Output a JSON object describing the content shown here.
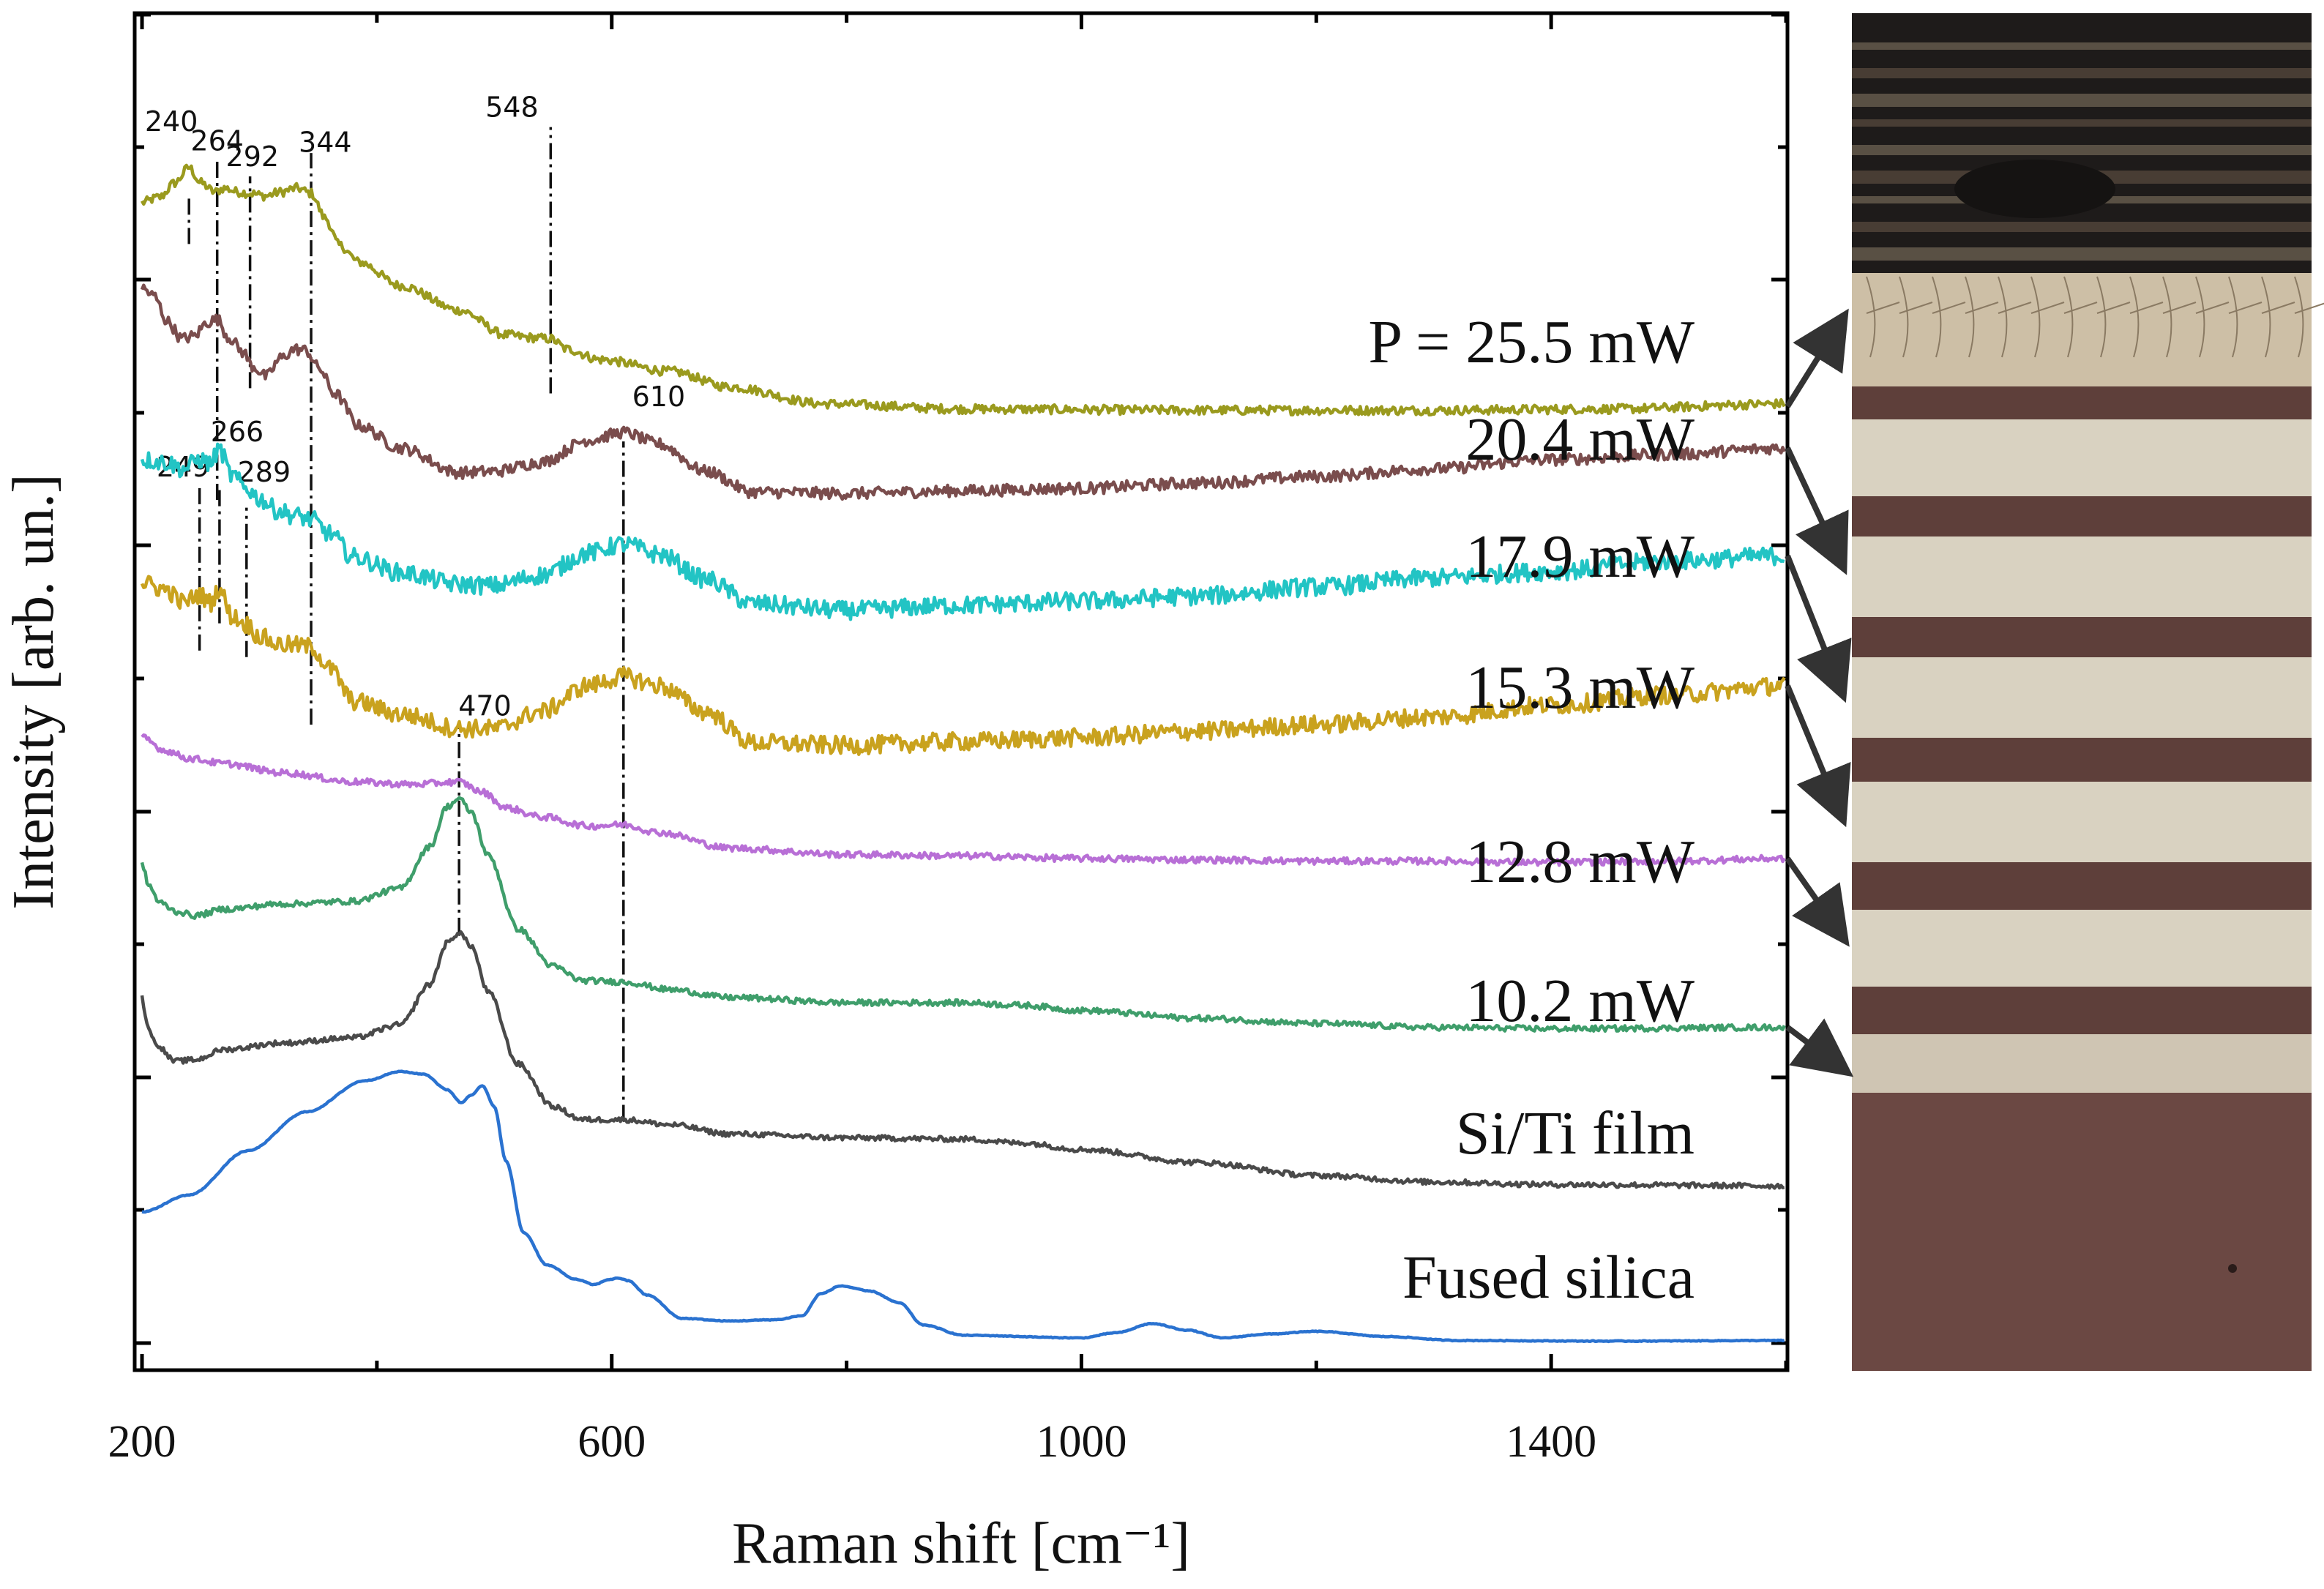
{
  "chart_data": {
    "type": "line",
    "title": "",
    "xlabel": "Raman shift [cm⁻¹]",
    "ylabel": "Intensity [arb. un.]",
    "xlim": [
      195,
      1600
    ],
    "ylim": [
      0,
      100
    ],
    "x_ticks": [
      200,
      600,
      1000,
      1400
    ],
    "x_tick_labels": [
      "200",
      "600",
      "1000",
      "1400"
    ],
    "y_tick_labels_shown": false,
    "series": [
      {
        "name": "P = 25.5 mW",
        "label": "P = 25.5 mW",
        "color": "#9a9a1e",
        "noise": 0.35,
        "points": [
          [
            200,
            87.8
          ],
          [
            215,
            88.2
          ],
          [
            228,
            89.3
          ],
          [
            240,
            90.5
          ],
          [
            250,
            89.3
          ],
          [
            262,
            88.6
          ],
          [
            270,
            88.9
          ],
          [
            282,
            88.6
          ],
          [
            292,
            88.5
          ],
          [
            305,
            88.3
          ],
          [
            318,
            88.6
          ],
          [
            332,
            88.9
          ],
          [
            344,
            88.5
          ],
          [
            356,
            86.6
          ],
          [
            368,
            84.5
          ],
          [
            385,
            83.2
          ],
          [
            420,
            81.4
          ],
          [
            470,
            79.5
          ],
          [
            510,
            77.6
          ],
          [
            530,
            77.4
          ],
          [
            548,
            77.3
          ],
          [
            562,
            76.5
          ],
          [
            590,
            75.7
          ],
          [
            650,
            74.8
          ],
          [
            700,
            73.6
          ],
          [
            780,
            72.3
          ],
          [
            900,
            71.9
          ],
          [
            1100,
            71.8
          ],
          [
            1300,
            71.8
          ],
          [
            1450,
            71.9
          ],
          [
            1600,
            72.3
          ]
        ]
      },
      {
        "name": "20.4 mW",
        "label": "20.4 mW",
        "color": "#7a4d4d",
        "noise": 0.45,
        "points": [
          [
            200,
            81.2
          ],
          [
            210,
            80.6
          ],
          [
            222,
            78.6
          ],
          [
            234,
            77.3
          ],
          [
            244,
            77.5
          ],
          [
            256,
            78.6
          ],
          [
            264,
            78.8
          ],
          [
            274,
            77.4
          ],
          [
            286,
            76.3
          ],
          [
            294,
            75.2
          ],
          [
            306,
            74.4
          ],
          [
            318,
            75.8
          ],
          [
            330,
            76.5
          ],
          [
            340,
            76.4
          ],
          [
            350,
            75.1
          ],
          [
            364,
            73.1
          ],
          [
            385,
            70.6
          ],
          [
            420,
            68.9
          ],
          [
            470,
            67.0
          ],
          [
            500,
            67.1
          ],
          [
            540,
            67.8
          ],
          [
            580,
            69.5
          ],
          [
            610,
            70.1
          ],
          [
            640,
            69.2
          ],
          [
            680,
            67.1
          ],
          [
            720,
            65.5
          ],
          [
            800,
            65.4
          ],
          [
            900,
            65.6
          ],
          [
            1000,
            65.8
          ],
          [
            1100,
            66.2
          ],
          [
            1200,
            66.7
          ],
          [
            1300,
            67.3
          ],
          [
            1400,
            68.0
          ],
          [
            1500,
            68.4
          ],
          [
            1600,
            68.9
          ]
        ]
      },
      {
        "name": "17.9 mW",
        "label": "17.9 mW",
        "color": "#22c4c4",
        "noise": 0.7,
        "points": [
          [
            200,
            68.0
          ],
          [
            220,
            67.8
          ],
          [
            235,
            67.3
          ],
          [
            249,
            68.0
          ],
          [
            258,
            67.7
          ],
          [
            266,
            68.8
          ],
          [
            276,
            66.8
          ],
          [
            289,
            65.8
          ],
          [
            300,
            65.0
          ],
          [
            315,
            64.1
          ],
          [
            330,
            63.7
          ],
          [
            344,
            63.4
          ],
          [
            360,
            62.3
          ],
          [
            380,
            60.5
          ],
          [
            420,
            59.3
          ],
          [
            470,
            58.4
          ],
          [
            500,
            58.3
          ],
          [
            540,
            59.1
          ],
          [
            580,
            60.8
          ],
          [
            610,
            61.5
          ],
          [
            640,
            60.7
          ],
          [
            680,
            58.8
          ],
          [
            720,
            56.9
          ],
          [
            800,
            56.4
          ],
          [
            900,
            56.8
          ],
          [
            1000,
            57.1
          ],
          [
            1100,
            57.5
          ],
          [
            1200,
            58.2
          ],
          [
            1300,
            58.9
          ],
          [
            1400,
            59.4
          ],
          [
            1500,
            60.2
          ],
          [
            1600,
            60.6
          ]
        ]
      },
      {
        "name": "15.3 mW",
        "label": "15.3 mW",
        "color": "#c9a21e",
        "noise": 0.7,
        "points": [
          [
            200,
            58.5
          ],
          [
            220,
            58.0
          ],
          [
            235,
            57.0
          ],
          [
            249,
            57.6
          ],
          [
            258,
            57.0
          ],
          [
            266,
            58.1
          ],
          [
            276,
            56.0
          ],
          [
            289,
            55.3
          ],
          [
            300,
            54.4
          ],
          [
            315,
            53.8
          ],
          [
            330,
            53.7
          ],
          [
            344,
            53.6
          ],
          [
            360,
            51.9
          ],
          [
            380,
            49.4
          ],
          [
            420,
            48.4
          ],
          [
            470,
            47.3
          ],
          [
            500,
            47.3
          ],
          [
            540,
            48.6
          ],
          [
            580,
            50.6
          ],
          [
            610,
            51.3
          ],
          [
            640,
            50.6
          ],
          [
            680,
            48.6
          ],
          [
            720,
            46.2
          ],
          [
            800,
            46.0
          ],
          [
            900,
            46.3
          ],
          [
            1000,
            46.6
          ],
          [
            1100,
            47.1
          ],
          [
            1200,
            47.6
          ],
          [
            1300,
            48.2
          ],
          [
            1400,
            49.1
          ],
          [
            1500,
            49.9
          ],
          [
            1600,
            50.6
          ]
        ]
      },
      {
        "name": "12.8 mW",
        "label": "12.8 mW",
        "color": "#b86fd6",
        "noise": 0.25,
        "points": [
          [
            200,
            46.6
          ],
          [
            220,
            45.6
          ],
          [
            240,
            45.0
          ],
          [
            270,
            44.6
          ],
          [
            320,
            43.9
          ],
          [
            380,
            43.2
          ],
          [
            430,
            43.0
          ],
          [
            470,
            43.2
          ],
          [
            490,
            42.4
          ],
          [
            510,
            41.2
          ],
          [
            540,
            40.5
          ],
          [
            580,
            39.8
          ],
          [
            610,
            39.9
          ],
          [
            640,
            39.3
          ],
          [
            700,
            38.1
          ],
          [
            800,
            37.6
          ],
          [
            900,
            37.5
          ],
          [
            1000,
            37.3
          ],
          [
            1100,
            37.2
          ],
          [
            1200,
            37.1
          ],
          [
            1300,
            37.1
          ],
          [
            1400,
            37.0
          ],
          [
            1500,
            37.1
          ],
          [
            1600,
            37.3
          ]
        ]
      },
      {
        "name": "10.2 mW",
        "label": "10.2 mW",
        "color": "#3f9e6b",
        "noise": 0.22,
        "points": [
          [
            200,
            36.8
          ],
          [
            206,
            35.2
          ],
          [
            215,
            33.9
          ],
          [
            230,
            33.2
          ],
          [
            245,
            32.9
          ],
          [
            270,
            33.4
          ],
          [
            320,
            33.8
          ],
          [
            380,
            34.0
          ],
          [
            420,
            35.0
          ],
          [
            445,
            38.2
          ],
          [
            460,
            41.3
          ],
          [
            470,
            41.9
          ],
          [
            480,
            40.9
          ],
          [
            495,
            37.5
          ],
          [
            520,
            31.9
          ],
          [
            550,
            29.0
          ],
          [
            575,
            27.9
          ],
          [
            610,
            27.8
          ],
          [
            650,
            27.2
          ],
          [
            700,
            26.6
          ],
          [
            800,
            26.2
          ],
          [
            900,
            26.2
          ],
          [
            950,
            26.0
          ],
          [
            1000,
            25.6
          ],
          [
            1100,
            25.0
          ],
          [
            1200,
            24.6
          ],
          [
            1300,
            24.3
          ],
          [
            1400,
            24.2
          ],
          [
            1600,
            24.3
          ]
        ]
      },
      {
        "name": "Si/Ti film",
        "label": "Si/Ti film",
        "color": "#4a4a4a",
        "noise": 0.2,
        "points": [
          [
            200,
            26.6
          ],
          [
            204,
            24.6
          ],
          [
            212,
            23.0
          ],
          [
            228,
            21.7
          ],
          [
            245,
            21.8
          ],
          [
            270,
            22.6
          ],
          [
            320,
            23.1
          ],
          [
            380,
            23.5
          ],
          [
            420,
            24.5
          ],
          [
            445,
            27.6
          ],
          [
            460,
            30.8
          ],
          [
            470,
            31.6
          ],
          [
            480,
            30.6
          ],
          [
            495,
            27.0
          ],
          [
            520,
            21.5
          ],
          [
            550,
            18.2
          ],
          [
            575,
            17.2
          ],
          [
            610,
            17.2
          ],
          [
            650,
            16.8
          ],
          [
            700,
            16.1
          ],
          [
            800,
            15.8
          ],
          [
            900,
            15.7
          ],
          [
            950,
            15.4
          ],
          [
            1000,
            14.9
          ],
          [
            1100,
            13.9
          ],
          [
            1200,
            12.9
          ],
          [
            1300,
            12.4
          ],
          [
            1400,
            12.2
          ],
          [
            1600,
            12.1
          ]
        ]
      },
      {
        "name": "Fused silica",
        "label": "Fused silica",
        "color": "#2a72d0",
        "noise": 0.03,
        "points": [
          [
            200,
            10.1
          ],
          [
            240,
            11.4
          ],
          [
            290,
            14.8
          ],
          [
            340,
            17.8
          ],
          [
            390,
            20.2
          ],
          [
            420,
            20.9
          ],
          [
            440,
            20.7
          ],
          [
            460,
            19.5
          ],
          [
            472,
            18.5
          ],
          [
            480,
            19.1
          ],
          [
            490,
            19.8
          ],
          [
            500,
            18.2
          ],
          [
            510,
            14.0
          ],
          [
            525,
            8.5
          ],
          [
            545,
            6.0
          ],
          [
            570,
            4.9
          ],
          [
            585,
            4.5
          ],
          [
            598,
            4.9
          ],
          [
            606,
            5.0
          ],
          [
            614,
            4.8
          ],
          [
            630,
            3.7
          ],
          [
            660,
            1.9
          ],
          [
            700,
            1.7
          ],
          [
            740,
            1.8
          ],
          [
            762,
            2.1
          ],
          [
            778,
            3.8
          ],
          [
            795,
            4.4
          ],
          [
            820,
            4.0
          ],
          [
            845,
            3.1
          ],
          [
            865,
            1.4
          ],
          [
            900,
            0.6
          ],
          [
            1000,
            0.4
          ],
          [
            1030,
            0.8
          ],
          [
            1060,
            1.5
          ],
          [
            1090,
            1.0
          ],
          [
            1120,
            0.4
          ],
          [
            1160,
            0.7
          ],
          [
            1200,
            0.9
          ],
          [
            1260,
            0.5
          ],
          [
            1320,
            0.2
          ],
          [
            1450,
            0.15
          ],
          [
            1600,
            0.2
          ]
        ]
      }
    ],
    "peak_lines": [
      {
        "x": 240,
        "label": "240",
        "y_from": 84.6,
        "y_to": 88.4
      },
      {
        "x": 264,
        "label": "264",
        "y_from": 64.9,
        "y_to": 91.0
      },
      {
        "x": 292,
        "label": "292",
        "y_from": 73.5,
        "y_to": 89.8
      },
      {
        "x": 344,
        "label": "344",
        "y_from": 47.6,
        "y_to": 91.6
      },
      {
        "x": 548,
        "label": "548",
        "y_from": 73.1,
        "y_to": 93.6
      },
      {
        "x": 249,
        "label": "249",
        "y_from": 53.3,
        "y_to": 66.2
      },
      {
        "x": 266,
        "label": "266",
        "y_from": 55.4,
        "y_to": 66.0
      },
      {
        "x": 289,
        "label": "289",
        "y_from": 52.8,
        "y_to": 64.3
      },
      {
        "x": 610,
        "label": "610",
        "y_from": 17.1,
        "y_to": 69.4
      },
      {
        "x": 470,
        "label": "470",
        "y_from": 31.5,
        "y_to": 47.6
      }
    ],
    "peak_label_positions": [
      {
        "label": "240",
        "x": 225,
        "y": 93.3
      },
      {
        "label": "264",
        "x": 264,
        "y": 91.8
      },
      {
        "label": "292",
        "x": 294,
        "y": 90.6
      },
      {
        "label": "344",
        "x": 356,
        "y": 91.7
      },
      {
        "label": "548",
        "x": 515,
        "y": 94.4
      },
      {
        "label": "249",
        "x": 235,
        "y": 66.7
      },
      {
        "label": "266",
        "x": 281,
        "y": 69.4
      },
      {
        "label": "289",
        "x": 304,
        "y": 66.3
      },
      {
        "label": "610",
        "x": 640,
        "y": 72.1
      },
      {
        "label": "470",
        "x": 492,
        "y": 48.3
      }
    ],
    "label_anchor_y": [
      {
        "label": "P = 25.5 mW",
        "y": 75.5
      },
      {
        "label": "20.4 mW",
        "y": 68.0
      },
      {
        "label": "17.9 mW",
        "y": 59.0
      },
      {
        "label": "15.3 mW",
        "y": 48.9
      },
      {
        "label": "12.8 mW",
        "y": 35.5
      },
      {
        "label": "10.2 mW",
        "y": 24.8
      },
      {
        "label": "Si/Ti film",
        "y": 14.6
      },
      {
        "label": "Fused silica",
        "y": 3.5
      }
    ],
    "arrows": [
      {
        "from": "P = 25.5 mW",
        "band_fraction": 0.235
      },
      {
        "from": "20.4 mW",
        "band_fraction": 0.405
      },
      {
        "from": "17.9 mW",
        "band_fraction": 0.495
      },
      {
        "from": "15.3 mW",
        "band_fraction": 0.59
      },
      {
        "from": "12.8 mW",
        "band_fraction": 0.675
      },
      {
        "from": "10.2 mW",
        "band_fraction": 0.78
      }
    ]
  },
  "micrograph": {
    "description_name": "optical-micrograph-of-laser-tracks",
    "colors": {
      "dark_top": "#1e1b1a",
      "light_band": "#d9d2c1",
      "dark_band": "#5e3f3a",
      "bottom": "#6b4843"
    }
  }
}
